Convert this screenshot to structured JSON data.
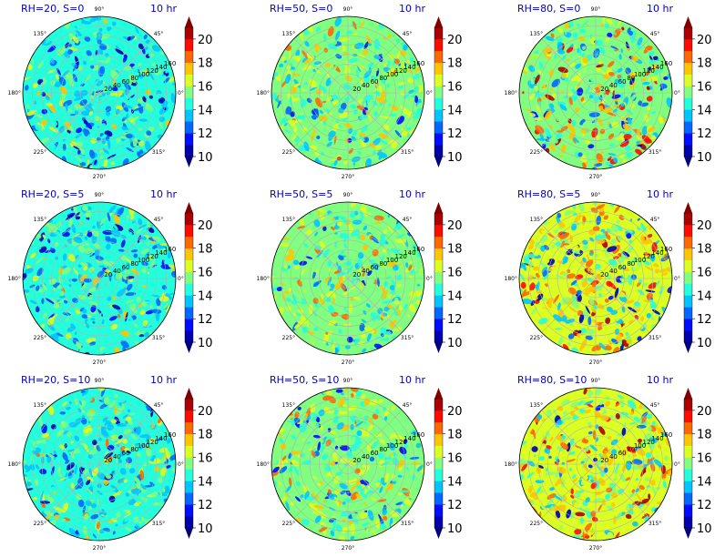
{
  "figure": {
    "colormap": "jet",
    "grid_color": "#b0b0b0"
  },
  "chart_data": [
    {
      "type": "heatmap",
      "projection": "polar",
      "title": "RH=20, S=0",
      "time_label": "10 hr",
      "angle_ticks": [
        "90°",
        "45°",
        "0°",
        "315°",
        "270°",
        "225°",
        "180°",
        "135°"
      ],
      "radial_ticks": [
        20,
        40,
        60,
        80,
        100,
        120,
        140,
        160
      ],
      "colorbar": {
        "ticks": [
          10,
          12,
          14,
          16,
          18,
          20
        ],
        "range": [
          10,
          21
        ],
        "extend": "both"
      },
      "field_mean": 14.3,
      "field_spread": 1.4,
      "grid": true
    },
    {
      "type": "heatmap",
      "projection": "polar",
      "title": "RH=50, S=0",
      "time_label": "10 hr",
      "angle_ticks": [
        "90°",
        "45°",
        "0°",
        "315°",
        "270°",
        "225°",
        "180°",
        "135°"
      ],
      "radial_ticks": [
        20,
        40,
        60,
        80,
        100,
        120,
        140,
        160
      ],
      "colorbar": {
        "ticks": [
          10,
          12,
          14,
          16,
          18,
          20
        ],
        "range": [
          10,
          21
        ],
        "extend": "both"
      },
      "field_mean": 15.4,
      "field_spread": 1.3,
      "grid": true
    },
    {
      "type": "heatmap",
      "projection": "polar",
      "title": "RH=80, S=0",
      "time_label": "10 hr",
      "angle_ticks": [
        "90°",
        "45°",
        "0°",
        "315°",
        "270°",
        "225°",
        "180°",
        "135°"
      ],
      "radial_ticks": [
        20,
        40,
        60,
        80,
        100,
        120,
        140,
        160
      ],
      "colorbar": {
        "ticks": [
          10,
          12,
          14,
          16,
          18,
          20
        ],
        "range": [
          10,
          21
        ],
        "extend": "both"
      },
      "field_mean": 15.6,
      "field_spread": 2.0,
      "grid": true
    },
    {
      "type": "heatmap",
      "projection": "polar",
      "title": "RH=20, S=5",
      "time_label": "10 hr",
      "angle_ticks": [
        "90°",
        "45°",
        "0°",
        "315°",
        "270°",
        "225°",
        "180°",
        "135°"
      ],
      "radial_ticks": [
        20,
        40,
        60,
        80,
        100,
        120,
        140,
        160
      ],
      "colorbar": {
        "ticks": [
          10,
          12,
          14,
          16,
          18,
          20
        ],
        "range": [
          10,
          21
        ],
        "extend": "both"
      },
      "field_mean": 14.3,
      "field_spread": 1.4,
      "grid": true
    },
    {
      "type": "heatmap",
      "projection": "polar",
      "title": "RH=50, S=5",
      "time_label": "10 hr",
      "angle_ticks": [
        "90°",
        "45°",
        "0°",
        "315°",
        "270°",
        "225°",
        "180°",
        "135°"
      ],
      "radial_ticks": [
        20,
        40,
        60,
        80,
        100,
        120,
        140,
        160
      ],
      "colorbar": {
        "ticks": [
          10,
          12,
          14,
          16,
          18,
          20
        ],
        "range": [
          10,
          21
        ],
        "extend": "both"
      },
      "field_mean": 15.4,
      "field_spread": 1.3,
      "grid": true
    },
    {
      "type": "heatmap",
      "projection": "polar",
      "title": "RH=80, S=5",
      "time_label": "10 hr",
      "angle_ticks": [
        "90°",
        "45°",
        "0°",
        "315°",
        "270°",
        "225°",
        "180°",
        "135°"
      ],
      "radial_ticks": [
        20,
        40,
        60,
        80,
        100,
        120,
        140,
        160
      ],
      "colorbar": {
        "ticks": [
          10,
          12,
          14,
          16,
          18,
          20
        ],
        "range": [
          10,
          21
        ],
        "extend": "both"
      },
      "field_mean": 16.1,
      "field_spread": 1.9,
      "grid": true
    },
    {
      "type": "heatmap",
      "projection": "polar",
      "title": "RH=20, S=10",
      "time_label": "10 hr",
      "angle_ticks": [
        "90°",
        "45°",
        "0°",
        "315°",
        "270°",
        "225°",
        "180°",
        "135°"
      ],
      "radial_ticks": [
        20,
        40,
        60,
        80,
        100,
        120,
        140,
        160
      ],
      "colorbar": {
        "ticks": [
          10,
          12,
          14,
          16,
          18,
          20
        ],
        "range": [
          10,
          21
        ],
        "extend": "both"
      },
      "field_mean": 14.6,
      "field_spread": 1.4,
      "grid": true
    },
    {
      "type": "heatmap",
      "projection": "polar",
      "title": "RH=50, S=10",
      "time_label": "10 hr",
      "angle_ticks": [
        "90°",
        "45°",
        "0°",
        "315°",
        "270°",
        "225°",
        "180°",
        "135°"
      ],
      "radial_ticks": [
        20,
        40,
        60,
        80,
        100,
        120,
        140,
        160
      ],
      "colorbar": {
        "ticks": [
          10,
          12,
          14,
          16,
          18,
          20
        ],
        "range": [
          10,
          21
        ],
        "extend": "both"
      },
      "field_mean": 15.5,
      "field_spread": 1.3,
      "grid": true
    },
    {
      "type": "heatmap",
      "projection": "polar",
      "title": "RH=80, S=10",
      "time_label": "10 hr",
      "angle_ticks": [
        "90°",
        "45°",
        "0°",
        "315°",
        "270°",
        "225°",
        "180°",
        "135°"
      ],
      "radial_ticks": [
        20,
        40,
        60,
        80,
        100,
        120,
        140,
        160
      ],
      "colorbar": {
        "ticks": [
          10,
          12,
          14,
          16,
          18,
          20
        ],
        "range": [
          10,
          21
        ],
        "extend": "both"
      },
      "field_mean": 16.3,
      "field_spread": 1.8,
      "grid": true
    }
  ]
}
